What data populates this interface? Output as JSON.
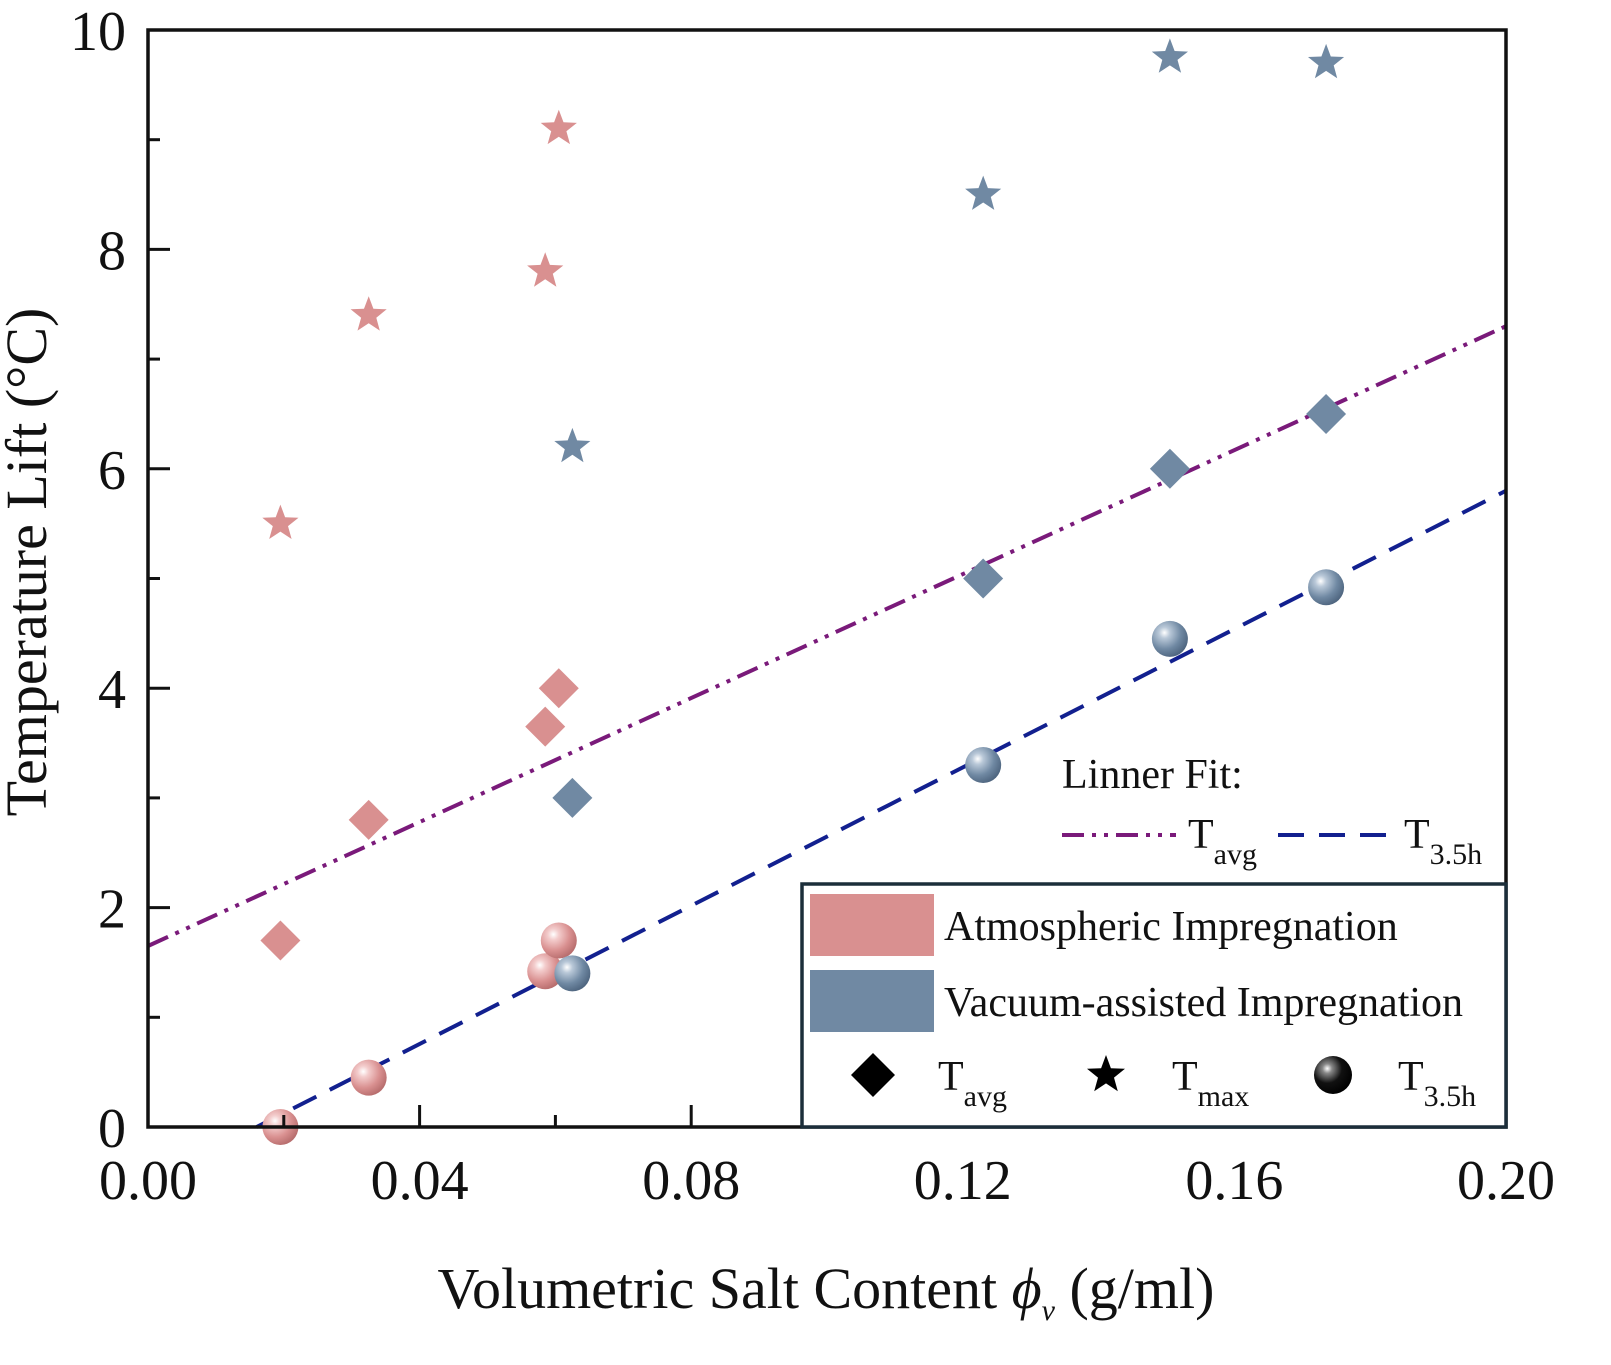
{
  "chart_data": {
    "type": "scatter",
    "xlabel_prefix": "Volumetric Salt Content",
    "xlabel_symbol": "ϕ",
    "xlabel_symbol_sub": "v",
    "xlabel_unit": "(g/ml)",
    "ylabel": "Temperature Lift (°C)",
    "xlim": [
      0.0,
      0.2
    ],
    "ylim": [
      0,
      10
    ],
    "x_ticks": [
      {
        "value": 0.0,
        "label": "0.00"
      },
      {
        "value": 0.04,
        "label": "0.04"
      },
      {
        "value": 0.08,
        "label": "0.08"
      },
      {
        "value": 0.12,
        "label": "0.12"
      },
      {
        "value": 0.16,
        "label": "0.16"
      },
      {
        "value": 0.2,
        "label": "0.20"
      }
    ],
    "y_ticks": [
      {
        "value": 0,
        "label": "0"
      },
      {
        "value": 2,
        "label": "2"
      },
      {
        "value": 4,
        "label": "4"
      },
      {
        "value": 6,
        "label": "6"
      },
      {
        "value": 8,
        "label": "8"
      },
      {
        "value": 10,
        "label": "10"
      }
    ],
    "grid": false,
    "colors": {
      "atmospheric": "#d99090",
      "vacuum": "#7089a3",
      "fit_avg": "#7a1a7a",
      "fit_35h": "#12208f",
      "legend_border": "#1c2e3a"
    },
    "groups": [
      {
        "name": "Atmospheric Impregnation",
        "color_key": "atmospheric",
        "x": [
          0.0195,
          0.0325,
          0.0585,
          0.0605
        ],
        "T_avg": [
          1.7,
          2.8,
          3.65,
          4.0
        ],
        "T_max": [
          5.5,
          7.4,
          7.8,
          9.1
        ],
        "T_3.5h": [
          0.0,
          0.45,
          1.42,
          1.7
        ]
      },
      {
        "name": "Vacuum-assisted Impregnation",
        "color_key": "vacuum",
        "x": [
          0.0625,
          0.123,
          0.1505,
          0.1735
        ],
        "T_avg": [
          3.0,
          5.0,
          6.0,
          6.5
        ],
        "T_max": [
          6.2,
          8.5,
          9.75,
          9.7
        ],
        "T_3.5h": [
          1.4,
          3.3,
          4.45,
          4.92
        ]
      }
    ],
    "fits": [
      {
        "name": "T",
        "sub": "avg",
        "color_key": "fit_avg",
        "style": "dash-dot-dot",
        "x": [
          0.0,
          0.2
        ],
        "y": [
          1.65,
          7.3
        ]
      },
      {
        "name": "T",
        "sub": "3.5h",
        "color_key": "fit_35h",
        "style": "dash",
        "x": [
          0.016,
          0.2
        ],
        "y": [
          0.0,
          5.8
        ]
      }
    ],
    "fit_legend_title": "Linner Fit:",
    "legend": {
      "placement": "bottom-right",
      "groups": [
        "Atmospheric Impregnation",
        "Vacuum-assisted Impregnation"
      ],
      "markers": [
        {
          "shape": "diamond",
          "name": "T",
          "sub": "avg"
        },
        {
          "shape": "star",
          "name": "T",
          "sub": "max"
        },
        {
          "shape": "sphere",
          "name": "T",
          "sub": "3.5h"
        }
      ]
    }
  }
}
